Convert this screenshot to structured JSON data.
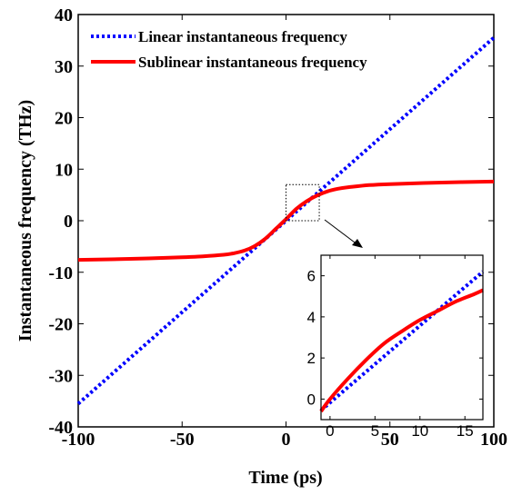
{
  "chart_data": [
    {
      "type": "line",
      "xlabel": "Time (ps)",
      "ylabel": "Instantaneous frequency (THz)",
      "xlim": [
        -100,
        100
      ],
      "ylim": [
        -40,
        40
      ],
      "xticks": [
        "-100",
        "-50",
        "0",
        "50",
        "100"
      ],
      "yticks": [
        "-40",
        "-30",
        "-20",
        "-10",
        "0",
        "10",
        "20",
        "30",
        "40"
      ],
      "grid": false,
      "legend_position": "top-left",
      "series": [
        {
          "name": "Linear instantaneous frequency",
          "color": "#0000ff",
          "style": "dotted",
          "x": [
            -100,
            100
          ],
          "y": [
            -35.5,
            35.5
          ]
        },
        {
          "name": "Sublinear instantaneous frequency",
          "color": "#ff0000",
          "style": "solid",
          "x": [
            -100,
            -75,
            -50,
            -40,
            -30,
            -25,
            -20,
            -15,
            -10,
            -5,
            0,
            5,
            10,
            15,
            20,
            25,
            30,
            40,
            50,
            75,
            100
          ],
          "y": [
            -7.6,
            -7.4,
            -7.1,
            -6.9,
            -6.6,
            -6.3,
            -5.8,
            -4.9,
            -3.5,
            -1.6,
            0.3,
            2.3,
            3.8,
            4.9,
            5.7,
            6.2,
            6.5,
            6.9,
            7.1,
            7.4,
            7.6
          ]
        }
      ],
      "annotations": [
        "dotted zoom box around x 0 to 16, y 0 to 7"
      ]
    },
    {
      "type": "line",
      "role": "inset",
      "xlim": [
        -1,
        17
      ],
      "ylim": [
        -1,
        7
      ],
      "xticks": [
        "0",
        "5",
        "10",
        "15"
      ],
      "yticks": [
        "0",
        "2",
        "4",
        "6"
      ],
      "series": [
        {
          "name": "Linear instantaneous frequency",
          "color": "#0000ff",
          "style": "dotted",
          "x": [
            -1,
            17
          ],
          "y": [
            -0.55,
            6.2
          ]
        },
        {
          "name": "Sublinear instantaneous frequency",
          "color": "#ff0000",
          "style": "solid",
          "x": [
            -1,
            0,
            2,
            4,
            6,
            8,
            10,
            12,
            14,
            16,
            17
          ],
          "y": [
            -0.6,
            0.0,
            1.0,
            1.9,
            2.7,
            3.3,
            3.85,
            4.3,
            4.75,
            5.1,
            5.3
          ]
        }
      ]
    }
  ]
}
